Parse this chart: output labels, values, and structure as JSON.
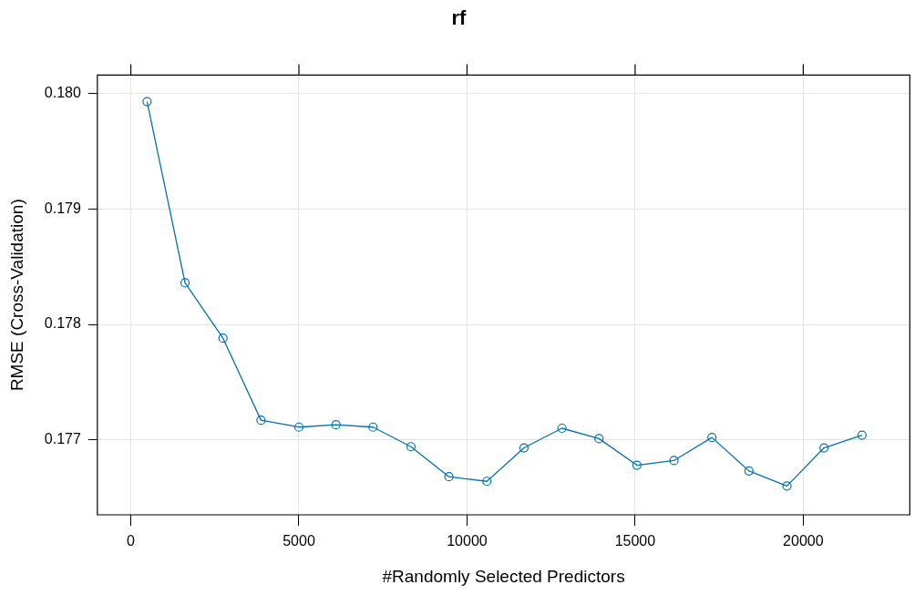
{
  "chart_data": {
    "type": "line",
    "title": "rf",
    "xlabel": "#Randomly Selected Predictors",
    "ylabel": "RMSE (Cross-Validation)",
    "x": [
      484,
      1613,
      2742,
      3871,
      5000,
      6102,
      7204,
      8333,
      9462,
      10591,
      11694,
      12823,
      13925,
      15054,
      16156,
      17285,
      18387,
      19516,
      20618,
      21747
    ],
    "series": [
      {
        "color": "#0072b2",
        "values": [
          0.17993,
          0.17836,
          0.17788,
          0.17717,
          0.17711,
          0.17713,
          0.17711,
          0.17694,
          0.17668,
          0.17664,
          0.17693,
          0.1771,
          0.17701,
          0.17678,
          0.17682,
          0.17702,
          0.17673,
          0.1766,
          0.17693,
          0.17704
        ]
      }
    ],
    "xlim": [
      -995,
      23170
    ],
    "xticks": [
      0,
      5000,
      10000,
      15000,
      20000
    ],
    "ylim": [
      0.17635,
      0.18016
    ],
    "yticks": [
      {
        "value": 0.177,
        "label": "0.177"
      },
      {
        "value": 0.178,
        "label": "0.178"
      },
      {
        "value": 0.179,
        "label": "0.179"
      },
      {
        "value": 0.18,
        "label": "0.180"
      }
    ],
    "grid": true,
    "legend": false,
    "marker": "circle",
    "line_style": "solid"
  }
}
